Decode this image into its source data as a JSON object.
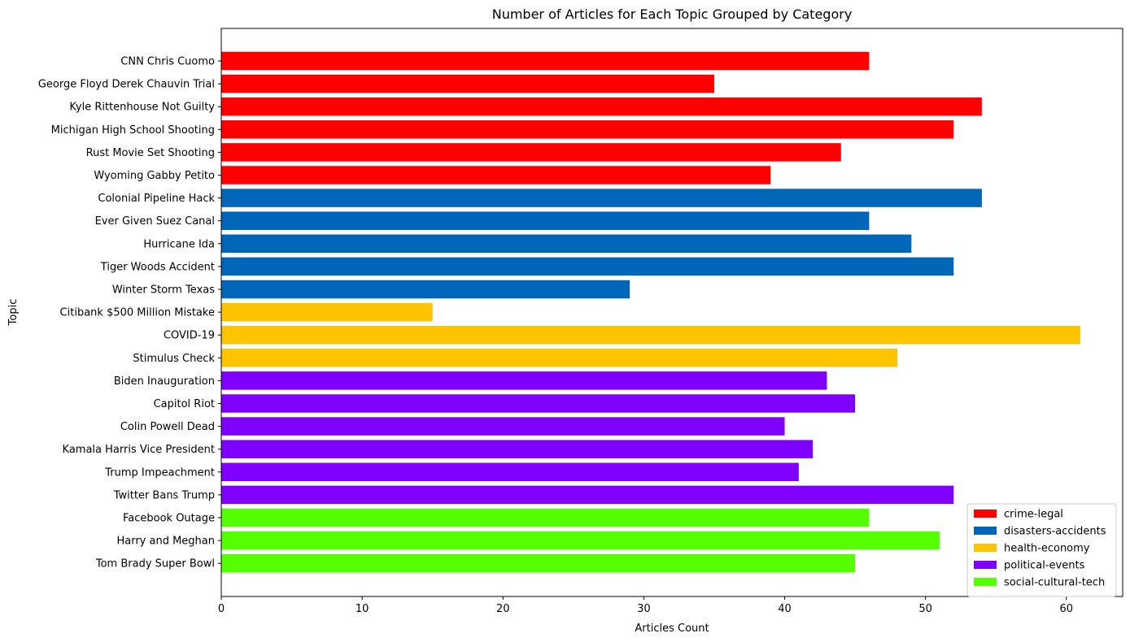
{
  "chart_data": {
    "type": "bar",
    "orientation": "horizontal",
    "title": "Number of Articles for Each Topic Grouped by Category",
    "xlabel": "Articles Count",
    "ylabel": "Topic",
    "xlim": [
      0,
      64
    ],
    "xticks": [
      0,
      10,
      20,
      30,
      40,
      50,
      60
    ],
    "grid": false,
    "legend_position": "lower-right",
    "categories_legend": [
      {
        "name": "crime-legal",
        "color": "#ff0000"
      },
      {
        "name": "disasters-accidents",
        "color": "#0066b8"
      },
      {
        "name": "health-economy",
        "color": "#ffc400"
      },
      {
        "name": "political-events",
        "color": "#8000ff"
      },
      {
        "name": "social-cultural-tech",
        "color": "#55ff00"
      }
    ],
    "bars": [
      {
        "topic": "CNN Chris Cuomo",
        "value": 46,
        "category": "crime-legal"
      },
      {
        "topic": "George Floyd Derek Chauvin Trial",
        "value": 35,
        "category": "crime-legal"
      },
      {
        "topic": "Kyle Rittenhouse Not Guilty",
        "value": 54,
        "category": "crime-legal"
      },
      {
        "topic": "Michigan High School Shooting",
        "value": 52,
        "category": "crime-legal"
      },
      {
        "topic": "Rust Movie Set Shooting",
        "value": 44,
        "category": "crime-legal"
      },
      {
        "topic": "Wyoming Gabby Petito",
        "value": 39,
        "category": "crime-legal"
      },
      {
        "topic": "Colonial Pipeline Hack",
        "value": 54,
        "category": "disasters-accidents"
      },
      {
        "topic": "Ever Given Suez Canal",
        "value": 46,
        "category": "disasters-accidents"
      },
      {
        "topic": "Hurricane Ida",
        "value": 49,
        "category": "disasters-accidents"
      },
      {
        "topic": "Tiger Woods Accident",
        "value": 52,
        "category": "disasters-accidents"
      },
      {
        "topic": "Winter Storm Texas",
        "value": 29,
        "category": "disasters-accidents"
      },
      {
        "topic": "Citibank $500 Million Mistake",
        "value": 15,
        "category": "health-economy"
      },
      {
        "topic": "COVID-19",
        "value": 61,
        "category": "health-economy"
      },
      {
        "topic": "Stimulus Check",
        "value": 48,
        "category": "health-economy"
      },
      {
        "topic": "Biden Inauguration",
        "value": 43,
        "category": "political-events"
      },
      {
        "topic": "Capitol Riot",
        "value": 45,
        "category": "political-events"
      },
      {
        "topic": "Colin Powell Dead",
        "value": 40,
        "category": "political-events"
      },
      {
        "topic": "Kamala Harris Vice President",
        "value": 42,
        "category": "political-events"
      },
      {
        "topic": "Trump Impeachment",
        "value": 41,
        "category": "political-events"
      },
      {
        "topic": "Twitter Bans Trump",
        "value": 52,
        "category": "political-events"
      },
      {
        "topic": "Facebook Outage",
        "value": 46,
        "category": "social-cultural-tech"
      },
      {
        "topic": "Harry and Meghan",
        "value": 51,
        "category": "social-cultural-tech"
      },
      {
        "topic": "Tom Brady Super Bowl",
        "value": 45,
        "category": "social-cultural-tech"
      }
    ]
  }
}
